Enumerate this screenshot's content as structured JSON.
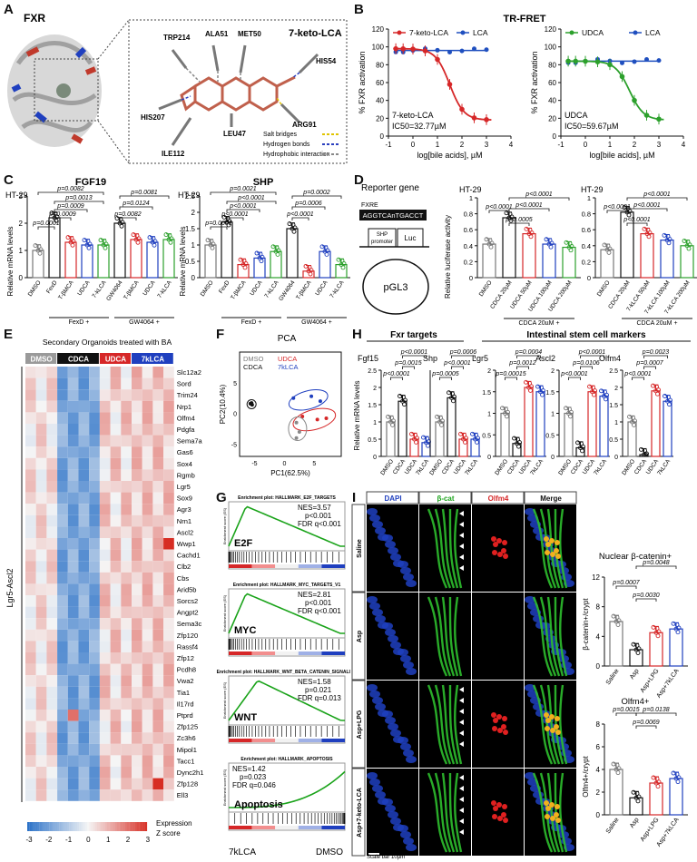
{
  "panels": {
    "A": "A",
    "B": "B",
    "C": "C",
    "D": "D",
    "E": "E",
    "F": "F",
    "G": "G",
    "H": "H",
    "I": "I"
  },
  "A": {
    "protein_label": "FXR",
    "ligand_label": "7-keto-LCA",
    "residues": [
      "TRP214",
      "ALA51",
      "MET50",
      "HIS54",
      "HIS207",
      "ARG91",
      "LEU47",
      "ILE112"
    ],
    "legend": [
      {
        "label": "Salt bridges",
        "color": "#e0c400"
      },
      {
        "label": "Hydrogen bonds",
        "color": "#2a3fbf"
      },
      {
        "label": "Hydrophobic interaction",
        "color": "#888888"
      }
    ]
  },
  "B": {
    "title": "TR-FRET",
    "ylabel": "% FXR activation",
    "xlabel": "log[bile acids], µM",
    "left": {
      "legend": [
        {
          "name": "7-keto-LCA",
          "color": "#d62728"
        },
        {
          "name": "LCA",
          "color": "#1f4fbf"
        }
      ],
      "annotation": [
        "7-keto-LCA",
        "IC50=32.77µM"
      ]
    },
    "right": {
      "legend": [
        {
          "name": "UDCA",
          "color": "#2ca02c"
        },
        {
          "name": "LCA",
          "color": "#1f4fbf"
        }
      ],
      "annotation": [
        "UDCA",
        "IC50=59.67µM"
      ]
    }
  },
  "C": {
    "left": {
      "title": "FGF19",
      "cell": "HT-29",
      "pvals": [
        "p=0.0082",
        "p=0.0013",
        "p=0.0009",
        "p=0.0009",
        "p=0.0001",
        "p=0.0081",
        "p=0.0124",
        "p=0.0082"
      ]
    },
    "right": {
      "title": "SHP",
      "cell": "HT-29",
      "pvals": [
        "p=0.0021",
        "p<0.0001",
        "p<0.0001",
        "p<0.0001",
        "p=0.0001",
        "p=0.0002",
        "p=0.0006",
        "p<0.0001"
      ]
    },
    "ylabel": "Relative mRNA levels",
    "categories": [
      "DMSO",
      "FexD",
      "T-βMCA",
      "UDCA",
      "7-kLCA",
      "GW4064",
      "T-βMCA",
      "UDCA",
      "7-kLCA"
    ],
    "groups": [
      "FexD +",
      "GW4064 +"
    ]
  },
  "D": {
    "title": "Reporter gene",
    "fxre": "FXRE",
    "seq": "AGGTCAnTGACCT",
    "shp": "SHP promoter",
    "luc": "Luc",
    "plasmid": "pGL3",
    "ylabel": "Relative luciferase activity",
    "left": {
      "cell": "HT-29",
      "categories": [
        "DMSO",
        "CDCA 20µM",
        "UDCA 50µM",
        "UDCA 100µM",
        "UDCA 200µM"
      ],
      "pvals": [
        "p<0.0001",
        "p<0.0001",
        "p<0.0001",
        "p=0.0005"
      ]
    },
    "right": {
      "cell": "HT-29",
      "categories": [
        "DMSO",
        "CDCA 20µM",
        "7-kLCA 50µM",
        "7-kLCA 100µM",
        "7-kLCA 200µM"
      ],
      "pvals": [
        "p<0.0001",
        "p<0.0001",
        "p<0.0001",
        "p<0.0001"
      ]
    },
    "group": "CDCA 20µM +"
  },
  "E": {
    "title": "Secondary Organoids treated with BA",
    "groups": [
      {
        "name": "DMSO",
        "color": "#9a9a9a"
      },
      {
        "name": "CDCA",
        "color": "#111111"
      },
      {
        "name": "UDCA",
        "color": "#d62728"
      },
      {
        "name": "7kLCA",
        "color": "#1f3fbf"
      }
    ],
    "row_group": "Lgr5-Ascl2",
    "genes": [
      "Slc12a2",
      "Sord",
      "Trim24",
      "Nrp1",
      "Olfm4",
      "Pdgfa",
      "Sema7a",
      "Gas6",
      "Sox4",
      "Rgmb",
      "Lgr5",
      "Sox9",
      "Agr3",
      "Nrn1",
      "Ascl2",
      "Wwp1",
      "Cachd1",
      "Clb2",
      "Cbs",
      "Arid5b",
      "Sorcs2",
      "Angpt2",
      "Sema3c",
      "Zfp120",
      "Rassf4",
      "Zfp12",
      "Pcdh8",
      "Vwa2",
      "Tia1",
      "Il17rd",
      "Ptprd",
      "Zfp125",
      "Zc3h6",
      "Mipol1",
      "Tacc1",
      "Dync2h1",
      "Zfp128",
      "Ell3"
    ],
    "scale_ticks": [
      "-3",
      "-2",
      "-1",
      "0",
      "1",
      "2",
      "3"
    ],
    "scale_label": [
      "Expression",
      "Z score"
    ]
  },
  "F": {
    "title": "PCA",
    "legend": [
      {
        "name": "DMSO",
        "color": "#777777"
      },
      {
        "name": "UDCA",
        "color": "#d62728"
      },
      {
        "name": "CDCA",
        "color": "#111111"
      },
      {
        "name": "7kLCA",
        "color": "#1f3fbf"
      }
    ],
    "xlabel": "PC1(62.5%)",
    "ylabel": "PC2(10.4%)"
  },
  "G": {
    "plots": [
      {
        "title": "Enrichment plot: HALLMARK_E2F_TARGETS",
        "label": "E2F",
        "stats": [
          "NES=3.57",
          "p<0.001",
          "FDR q<0.001"
        ]
      },
      {
        "title": "Enrichment plot: HALLMARK_MYC_TARGETS_V1",
        "label": "MYC",
        "stats": [
          "NES=2.81",
          "p<0.001",
          "FDR q<0.001"
        ]
      },
      {
        "title": "Enrichment plot: HALLMARK_WNT_BETA_CATENIN_SIGNALING",
        "label": "WNT",
        "stats": [
          "NES=1.58",
          "p=0.021",
          "FDR q=0.013"
        ]
      },
      {
        "title": "Enrichment plot: HALLMARK_APOPTOSIS",
        "label": "Apoptosis",
        "stats": [
          "NES=1.42",
          "p=0.023",
          "FDR q=0.046"
        ]
      }
    ],
    "left": "7kLCA",
    "right": "DMSO"
  },
  "H": {
    "left_title": "Fxr targets",
    "right_title": "Intestinal stem cell markers",
    "ylabel": "Relative mRNA levels",
    "genes": [
      "Fgf15",
      "Shp",
      "Lgr5",
      "Ascl2",
      "Olfm4"
    ],
    "categories": [
      "DMSO",
      "CDCA",
      "UDCA",
      "7kLCA"
    ],
    "pvals": [
      "p<0.0001",
      "p=0.0015",
      "p<0.0001",
      "p=0.0006",
      "p<0.0001",
      "p=0.0005",
      "p=0.0004",
      "p=0.0012",
      "p=0.00015",
      "p<0.0001",
      "p=0.0106",
      "p<0.0001",
      "p=0.0023",
      "p=0.0007",
      "p<0.0001"
    ]
  },
  "I": {
    "channels": [
      "DAPI",
      "β-cat",
      "Olfm4",
      "Merge"
    ],
    "rows": [
      "Saline",
      "Asp",
      "Asp+LPG",
      "Asp+7-keto-LCA"
    ],
    "scale": "Scale bar 10µm",
    "top": {
      "title": "Nuclear β-catenin+",
      "ylabel": "β-catenin+/crypt",
      "pvals": [
        "p=0.0048",
        "p=0.0007",
        "p=0.0030"
      ],
      "categories": [
        "Saline",
        "Asp",
        "Asp+LPG",
        "Asp+7kLCA"
      ]
    },
    "bottom": {
      "title": "Olfm4+",
      "ylabel": "Olfm4+/crypt",
      "pvals": [
        "p=0.0015",
        "p=0.0138",
        "p=0.0069"
      ],
      "categories": [
        "Saline",
        "Asp",
        "Asp+LPG",
        "Asp+7kLCA"
      ]
    }
  }
}
